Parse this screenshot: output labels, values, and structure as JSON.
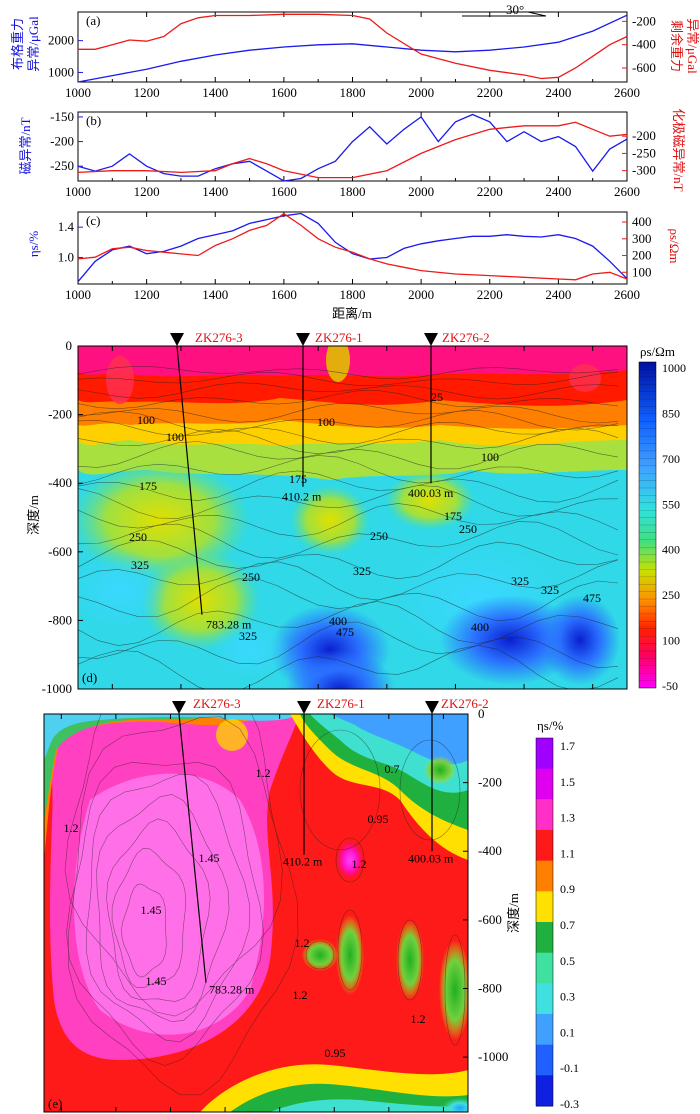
{
  "panels": {
    "a": {
      "tag": "(a)",
      "azimuth": "30°",
      "left_label_1": "布格重力",
      "left_label_2": "异常/μGal",
      "right_label_1": "剩余重力",
      "right_label_2": "异常/μGal"
    },
    "b": {
      "tag": "(b)",
      "left_label": "磁异常/nT",
      "right_label": "化极磁异常/nT"
    },
    "c": {
      "tag": "(c)",
      "left_label": "ηs/%",
      "right_label": "ρs/Ωm",
      "x_label": "距离/m"
    },
    "d": {
      "tag": "(d)",
      "depth_label": "深度/m",
      "colorbar_title": "ρs/Ωm"
    },
    "e": {
      "tag": "(e)",
      "depth_label": "深度/m",
      "colorbar_title": "ηs/%"
    }
  },
  "chart_data": [
    {
      "type": "line",
      "panel": "(a)",
      "xlim": [
        1000,
        2600
      ],
      "x_ticks": [
        "1000",
        "1200",
        "1400",
        "1600",
        "1800",
        "2000",
        "2200",
        "2400",
        "2600"
      ],
      "left_ylim": [
        700,
        2900
      ],
      "left_ticks": [
        "1000",
        "2000"
      ],
      "right_ylim": [
        -720,
        -120
      ],
      "right_ticks": [
        "-200",
        "-400",
        "-600"
      ],
      "colors": {
        "left": "#1a1aee",
        "right": "#ee1a1a"
      },
      "series": [
        {
          "axis": "left",
          "x": [
            1000,
            1100,
            1200,
            1300,
            1400,
            1500,
            1600,
            1700,
            1800,
            1900,
            2000,
            2100,
            2200,
            2300,
            2400,
            2500,
            2600
          ],
          "y": [
            700,
            900,
            1100,
            1350,
            1550,
            1700,
            1800,
            1870,
            1900,
            1800,
            1700,
            1650,
            1700,
            1800,
            1950,
            2300,
            2800
          ]
        },
        {
          "axis": "right",
          "x": [
            1000,
            1050,
            1100,
            1150,
            1200,
            1250,
            1300,
            1350,
            1400,
            1500,
            1600,
            1700,
            1800,
            1850,
            1900,
            2000,
            2100,
            2200,
            2300,
            2350,
            2400,
            2450,
            2500,
            2550,
            2600
          ],
          "y": [
            -440,
            -440,
            -400,
            -360,
            -370,
            -330,
            -220,
            -170,
            -150,
            -150,
            -140,
            -140,
            -150,
            -180,
            -300,
            -480,
            -560,
            -620,
            -660,
            -690,
            -680,
            -600,
            -500,
            -400,
            -330
          ]
        }
      ]
    },
    {
      "type": "line",
      "panel": "(b)",
      "xlim": [
        1000,
        2600
      ],
      "x_ticks": [
        "1000",
        "1200",
        "1400",
        "1600",
        "1800",
        "2000",
        "2200",
        "2400",
        "2600"
      ],
      "left_ylim": [
        -280,
        -140
      ],
      "left_ticks": [
        "-150",
        "-200",
        "-250"
      ],
      "right_ylim": [
        -330,
        -130
      ],
      "right_ticks": [
        "-200",
        "-250",
        "-300"
      ],
      "colors": {
        "left": "#1a1aee",
        "right": "#ee1a1a"
      },
      "series": [
        {
          "axis": "left",
          "x": [
            1000,
            1050,
            1100,
            1150,
            1200,
            1250,
            1300,
            1350,
            1400,
            1450,
            1500,
            1550,
            1600,
            1650,
            1700,
            1750,
            1800,
            1850,
            1900,
            1950,
            2000,
            2050,
            2100,
            2150,
            2200,
            2250,
            2300,
            2350,
            2400,
            2450,
            2500,
            2550,
            2600
          ],
          "y": [
            -250,
            -260,
            -250,
            -225,
            -250,
            -265,
            -270,
            -270,
            -255,
            -245,
            -240,
            -260,
            -280,
            -275,
            -255,
            -240,
            -200,
            -170,
            -205,
            -175,
            -150,
            -200,
            -160,
            -145,
            -160,
            -200,
            -180,
            -200,
            -190,
            -210,
            -260,
            -215,
            -195
          ]
        },
        {
          "axis": "right",
          "x": [
            1000,
            1100,
            1200,
            1300,
            1400,
            1450,
            1500,
            1550,
            1600,
            1700,
            1800,
            1900,
            2000,
            2100,
            2200,
            2300,
            2400,
            2450,
            2500,
            2550,
            2600
          ],
          "y": [
            -305,
            -300,
            -300,
            -305,
            -300,
            -280,
            -265,
            -280,
            -300,
            -320,
            -320,
            -300,
            -250,
            -210,
            -180,
            -170,
            -170,
            -160,
            -180,
            -200,
            -195
          ]
        }
      ]
    },
    {
      "type": "line",
      "panel": "(c)",
      "xlim": [
        1000,
        2600
      ],
      "x_ticks": [
        "1000",
        "1200",
        "1400",
        "1600",
        "1800",
        "2000",
        "2200",
        "2400",
        "2600"
      ],
      "left_ylim": [
        0.65,
        1.6
      ],
      "left_ticks": [
        "1.0",
        "1.4"
      ],
      "right_ylim": [
        30,
        460
      ],
      "right_ticks": [
        "100",
        "200",
        "300",
        "400"
      ],
      "colors": {
        "left": "#1a1aee",
        "right": "#ee1a1a"
      },
      "series": [
        {
          "axis": "left",
          "x": [
            1000,
            1050,
            1100,
            1150,
            1200,
            1250,
            1300,
            1350,
            1400,
            1450,
            1500,
            1550,
            1600,
            1650,
            1700,
            1750,
            1800,
            1850,
            1900,
            1950,
            2000,
            2050,
            2100,
            2150,
            2200,
            2250,
            2300,
            2350,
            2400,
            2450,
            2500,
            2550,
            2600
          ],
          "y": [
            0.68,
            0.95,
            1.1,
            1.15,
            1.05,
            1.08,
            1.15,
            1.25,
            1.3,
            1.35,
            1.45,
            1.5,
            1.55,
            1.58,
            1.45,
            1.2,
            1.05,
            0.98,
            1.0,
            1.12,
            1.18,
            1.22,
            1.25,
            1.28,
            1.28,
            1.3,
            1.28,
            1.27,
            1.3,
            1.25,
            1.15,
            0.95,
            0.72
          ]
        },
        {
          "axis": "right",
          "x": [
            1000,
            1050,
            1100,
            1150,
            1200,
            1250,
            1300,
            1350,
            1400,
            1450,
            1500,
            1550,
            1600,
            1650,
            1700,
            1750,
            1800,
            1850,
            1900,
            1950,
            2000,
            2100,
            2200,
            2300,
            2400,
            2450,
            2500,
            2550,
            2600
          ],
          "y": [
            180,
            190,
            240,
            250,
            230,
            220,
            210,
            200,
            260,
            300,
            350,
            380,
            450,
            380,
            300,
            250,
            220,
            180,
            150,
            130,
            110,
            90,
            80,
            70,
            60,
            55,
            90,
            100,
            60
          ]
        }
      ]
    },
    {
      "type": "heatmap",
      "panel": "(d)",
      "quantity": "ρs/Ωm",
      "y_ticks": [
        "0",
        "-200",
        "-400",
        "-600",
        "-800",
        "-1000"
      ],
      "ylim": [
        -1000,
        0
      ],
      "xlim": [
        1000,
        2600
      ],
      "colorbar_ticks": [
        "1000",
        "850",
        "700",
        "550",
        "400",
        "250",
        "100",
        "-50"
      ],
      "contour_labels": [
        "100",
        "100",
        "100",
        "25",
        "100",
        "175",
        "175",
        "175",
        "250",
        "250",
        "250",
        "250",
        "325",
        "325",
        "325",
        "325",
        "325",
        "400",
        "475",
        "400",
        "475"
      ],
      "boreholes": [
        {
          "name": "ZK276-3",
          "depth_label": "783.28 m",
          "depth": 783.28
        },
        {
          "name": "ZK276-1",
          "depth_label": "410.2 m",
          "depth": 410.2
        },
        {
          "name": "ZK276-2",
          "depth_label": "400.03 m",
          "depth": 400.03
        }
      ]
    },
    {
      "type": "heatmap",
      "panel": "(e)",
      "quantity": "ηs/%",
      "y_ticks": [
        "0",
        "-200",
        "-400",
        "-600",
        "-800",
        "-1000"
      ],
      "ylim": [
        -1160,
        0
      ],
      "xlim": [
        1000,
        2600
      ],
      "colorbar_ticks": [
        "1.7",
        "1.5",
        "1.3",
        "1.1",
        "0.9",
        "0.7",
        "0.5",
        "0.3",
        "0.1",
        "-0.1",
        "-0.3"
      ],
      "colorbar_colors": [
        "#a000ff",
        "#e000f0",
        "#ff30c8",
        "#ff1a1a",
        "#ff8000",
        "#ffe000",
        "#20b040",
        "#40e0a0",
        "#40e0e0",
        "#40a0ff",
        "#2060ff",
        "#1020e0"
      ],
      "contour_labels": [
        "1.2",
        "1.2",
        "1.45",
        "1.45",
        "1.45",
        "0.7",
        "0.95",
        "1.2",
        "1.2",
        "1.2",
        "1.2",
        "0.95"
      ],
      "boreholes": [
        {
          "name": "ZK276-3",
          "depth_label": "783.28 m",
          "depth": 783.28
        },
        {
          "name": "ZK276-1",
          "depth_label": "410.2 m",
          "depth": 410.2
        },
        {
          "name": "ZK276-2",
          "depth_label": "400.03 m",
          "depth": 400.03
        }
      ]
    }
  ]
}
